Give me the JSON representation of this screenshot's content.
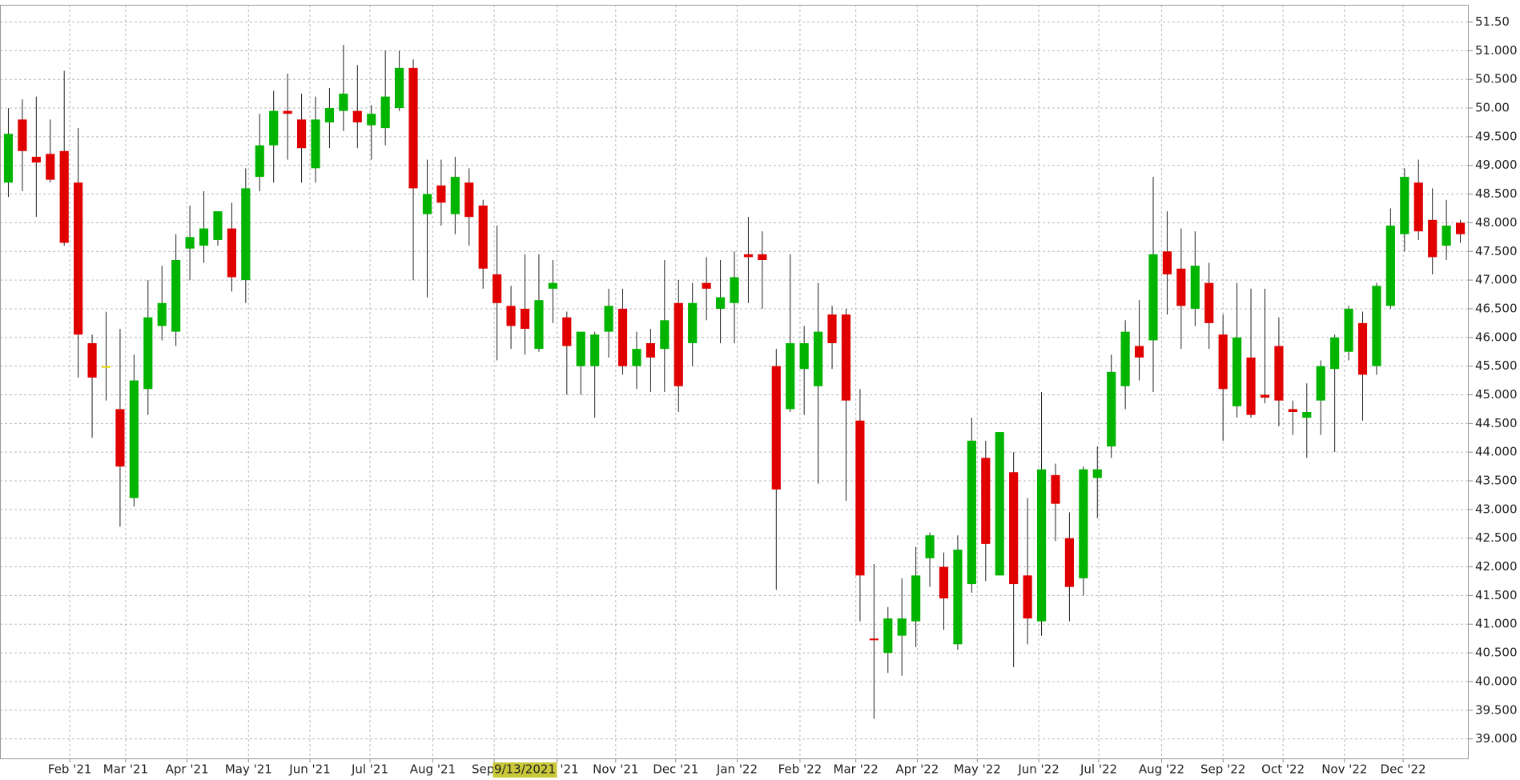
{
  "chart_data": {
    "type": "candlestick",
    "up_color": "#00b400",
    "down_color": "#e00000",
    "doji_color": "#e8d800",
    "grid": true,
    "open": [
      48.7,
      49.8,
      49.15,
      49.2,
      49.25,
      48.7,
      45.9,
      45.5,
      44.75,
      43.2,
      45.1,
      46.2,
      46.1,
      47.55,
      47.6,
      47.7,
      47.9,
      47.0,
      48.8,
      49.35,
      49.95,
      49.8,
      48.95,
      49.75,
      49.95,
      49.95,
      49.7,
      49.65,
      50.0,
      50.7,
      48.15,
      48.65,
      48.15,
      48.7,
      48.3,
      47.1,
      46.55,
      46.5,
      45.8,
      46.85,
      46.35,
      45.5,
      45.5,
      46.1,
      46.5,
      45.5,
      45.9,
      45.8,
      46.6,
      45.9,
      46.95,
      46.5,
      46.6,
      47.45,
      47.45,
      45.5,
      44.75,
      45.45,
      45.15,
      46.4,
      46.4,
      44.55,
      40.75,
      40.5,
      40.8,
      41.05,
      42.15,
      42.0,
      40.65,
      41.7,
      43.9,
      41.85,
      43.65,
      41.85,
      41.05,
      43.6,
      42.5,
      41.8,
      43.55,
      44.1,
      45.15,
      45.85,
      45.95,
      47.5,
      47.2,
      46.5,
      46.95,
      46.05,
      44.8,
      45.65,
      45.0,
      45.85,
      44.75,
      44.6,
      44.9,
      45.45,
      45.75,
      46.25,
      45.5,
      46.55,
      47.8,
      48.7,
      48.05,
      47.6,
      48.0
    ],
    "high": [
      50.0,
      50.15,
      50.2,
      49.8,
      50.65,
      49.65,
      46.05,
      46.45,
      46.15,
      45.7,
      47.0,
      47.25,
      47.8,
      48.3,
      48.55,
      48.2,
      48.35,
      48.95,
      49.9,
      50.3,
      50.6,
      50.25,
      50.2,
      50.35,
      51.1,
      50.75,
      50.05,
      51.0,
      51.0,
      50.85,
      49.1,
      49.1,
      49.15,
      48.95,
      48.4,
      47.95,
      46.9,
      47.45,
      47.45,
      47.35,
      46.45,
      46.05,
      46.1,
      46.85,
      46.85,
      46.1,
      46.15,
      47.35,
      47.0,
      46.95,
      47.4,
      47.35,
      47.5,
      48.1,
      47.85,
      45.8,
      47.45,
      46.2,
      46.95,
      46.55,
      46.5,
      45.1,
      42.05,
      41.3,
      41.8,
      42.35,
      42.6,
      42.25,
      42.55,
      44.6,
      44.2,
      44.35,
      44.0,
      43.2,
      45.05,
      43.8,
      42.95,
      43.75,
      44.1,
      45.7,
      46.3,
      46.65,
      48.8,
      48.2,
      47.9,
      47.85,
      47.3,
      46.4,
      46.95,
      46.85,
      46.85,
      46.35,
      44.9,
      45.2,
      45.6,
      46.05,
      46.55,
      46.45,
      46.95,
      48.25,
      48.95,
      49.1,
      48.6,
      48.4,
      48.05
    ],
    "low": [
      48.45,
      48.55,
      48.1,
      48.7,
      47.6,
      45.3,
      44.25,
      44.9,
      42.7,
      43.05,
      44.65,
      45.95,
      45.85,
      47.0,
      47.3,
      47.6,
      46.8,
      46.6,
      48.55,
      48.7,
      49.1,
      48.7,
      48.7,
      49.3,
      49.6,
      49.3,
      49.1,
      49.35,
      49.95,
      47.0,
      46.7,
      47.95,
      47.8,
      47.6,
      46.85,
      45.6,
      45.8,
      45.7,
      45.75,
      46.25,
      45.0,
      45.0,
      44.6,
      45.65,
      45.35,
      45.1,
      45.05,
      45.05,
      44.7,
      45.5,
      46.3,
      45.9,
      45.9,
      46.6,
      46.5,
      41.6,
      44.7,
      44.65,
      43.45,
      45.45,
      43.15,
      41.05,
      39.35,
      40.15,
      40.1,
      40.6,
      41.65,
      40.9,
      40.55,
      41.55,
      41.75,
      41.85,
      40.25,
      40.65,
      40.8,
      42.45,
      41.05,
      41.5,
      42.85,
      43.9,
      44.75,
      45.25,
      45.05,
      46.4,
      45.8,
      46.2,
      45.8,
      44.2,
      44.6,
      44.6,
      44.85,
      44.45,
      44.3,
      43.9,
      44.3,
      44.0,
      45.6,
      44.55,
      45.35,
      46.5,
      47.5,
      47.7,
      47.1,
      47.35,
      47.65
    ],
    "close": [
      49.55,
      49.25,
      49.05,
      48.75,
      47.65,
      46.05,
      45.3,
      45.5,
      43.75,
      45.25,
      46.35,
      46.6,
      47.35,
      47.75,
      47.9,
      48.2,
      47.05,
      48.6,
      49.35,
      49.95,
      49.9,
      49.3,
      49.8,
      50.0,
      50.25,
      49.75,
      49.9,
      50.2,
      50.7,
      48.6,
      48.5,
      48.35,
      48.8,
      48.1,
      47.2,
      46.6,
      46.2,
      46.15,
      46.65,
      46.95,
      45.85,
      46.1,
      46.05,
      46.55,
      45.5,
      45.8,
      45.65,
      46.3,
      45.15,
      46.6,
      46.85,
      46.7,
      47.05,
      47.4,
      47.35,
      43.35,
      45.9,
      45.9,
      46.1,
      45.9,
      44.9,
      41.85,
      40.72,
      41.1,
      41.1,
      41.85,
      42.55,
      41.45,
      42.3,
      44.2,
      42.4,
      44.35,
      41.7,
      41.1,
      43.7,
      43.1,
      41.65,
      43.7,
      43.7,
      45.4,
      46.1,
      45.65,
      47.45,
      47.1,
      46.55,
      47.25,
      46.25,
      45.1,
      46.0,
      44.65,
      44.95,
      44.9,
      44.7,
      44.7,
      45.5,
      46.0,
      46.5,
      45.35,
      46.9,
      47.95,
      48.8,
      47.85,
      47.4,
      47.95,
      47.8
    ],
    "xlim": [
      -0.6,
      104.6
    ],
    "xticks": [
      {
        "value": 4.4,
        "label": "Feb '21"
      },
      {
        "value": 8.4,
        "label": "Mar '21"
      },
      {
        "value": 12.8,
        "label": "Apr '21"
      },
      {
        "value": 17.2,
        "label": "May '21"
      },
      {
        "value": 21.6,
        "label": "Jun '21"
      },
      {
        "value": 25.9,
        "label": "Jul '21"
      },
      {
        "value": 30.4,
        "label": "Aug '21"
      },
      {
        "value": 34.8,
        "label": "Sep '21"
      },
      {
        "value": 39.3,
        "label": "Oct '21"
      },
      {
        "value": 43.5,
        "label": "Nov '21"
      },
      {
        "value": 47.8,
        "label": "Dec '21"
      },
      {
        "value": 52.2,
        "label": "Jan '22"
      },
      {
        "value": 56.7,
        "label": "Feb '22"
      },
      {
        "value": 60.7,
        "label": "Mar '22"
      },
      {
        "value": 65.1,
        "label": "Apr '22"
      },
      {
        "value": 69.4,
        "label": "May '22"
      },
      {
        "value": 73.8,
        "label": "Jun '22"
      },
      {
        "value": 78.1,
        "label": "Jul '22"
      },
      {
        "value": 82.6,
        "label": "Aug '22"
      },
      {
        "value": 87.0,
        "label": "Sep '22"
      },
      {
        "value": 91.3,
        "label": "Oct '22"
      },
      {
        "value": 95.7,
        "label": "Nov '22"
      },
      {
        "value": 99.9,
        "label": "Dec '22"
      }
    ],
    "ylim": [
      38.66,
      51.8
    ],
    "yticks": [
      {
        "value": 51.5,
        "label": "51.50"
      },
      {
        "value": 51,
        "label": "51.000"
      },
      {
        "value": 50.5,
        "label": "50.500"
      },
      {
        "value": 50,
        "label": "50.00"
      },
      {
        "value": 49.5,
        "label": "49.500"
      },
      {
        "value": 49,
        "label": "49.000"
      },
      {
        "value": 48.5,
        "label": "48.500"
      },
      {
        "value": 48,
        "label": "48.000"
      },
      {
        "value": 47.5,
        "label": "47.500"
      },
      {
        "value": 47,
        "label": "47.000"
      },
      {
        "value": 46.5,
        "label": "46.500"
      },
      {
        "value": 46,
        "label": "46.000"
      },
      {
        "value": 45.5,
        "label": "45.500"
      },
      {
        "value": 45,
        "label": "45.000"
      },
      {
        "value": 44.5,
        "label": "44.500"
      },
      {
        "value": 44,
        "label": "44.000"
      },
      {
        "value": 43.5,
        "label": "43.500"
      },
      {
        "value": 43,
        "label": "43.000"
      },
      {
        "value": 42.5,
        "label": "42.500"
      },
      {
        "value": 42,
        "label": "42.000"
      },
      {
        "value": 41.5,
        "label": "41.500"
      },
      {
        "value": 41,
        "label": "41.000"
      },
      {
        "value": 40.5,
        "label": "40.500"
      },
      {
        "value": 40,
        "label": "40.000"
      },
      {
        "value": 39.5,
        "label": "39.500"
      },
      {
        "value": 39,
        "label": "39.000"
      }
    ],
    "crosshair": {
      "index": 37,
      "label": "9/13/2021"
    }
  }
}
